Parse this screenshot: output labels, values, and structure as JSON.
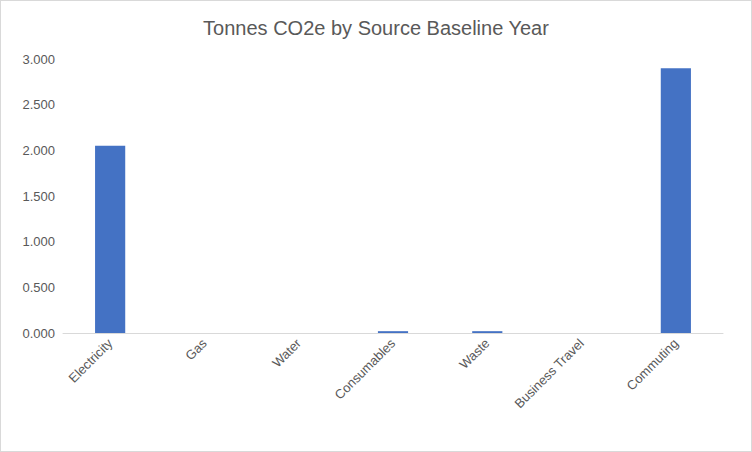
{
  "chart_data": {
    "type": "bar",
    "title": "Tonnes CO2e by Source Baseline Year",
    "categories": [
      "Electricity",
      "Gas",
      "Water",
      "Consumables",
      "Waste",
      "Business Travel",
      "Commuting"
    ],
    "values": [
      2.05,
      0,
      0,
      0.02,
      0.02,
      0,
      2.9
    ],
    "color": "#4472c4",
    "ylim": [
      0,
      3
    ],
    "yticks": [
      {
        "value": 0,
        "label": "0.000"
      },
      {
        "value": 0.5,
        "label": "0.500"
      },
      {
        "value": 1,
        "label": "1.000"
      },
      {
        "value": 1.5,
        "label": "1.500"
      },
      {
        "value": 2,
        "label": "2.000"
      },
      {
        "value": 2.5,
        "label": "2.500"
      },
      {
        "value": 3,
        "label": "3.000"
      }
    ],
    "grid": false
  }
}
